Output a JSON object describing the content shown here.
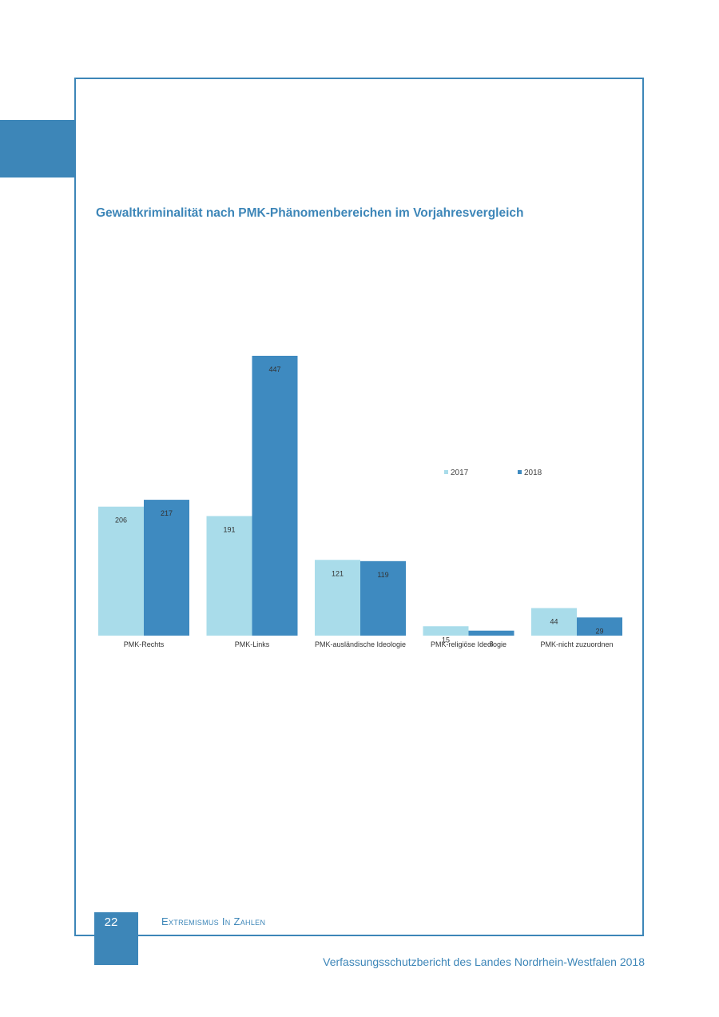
{
  "page": {
    "number": "22",
    "section": "Extremismus In Zahlen",
    "footer": "Verfassungsschutzbericht des Landes Nordrhein-Westfalen 2018"
  },
  "colors": {
    "accent": "#3d86b8",
    "series_2017": "#a9dcea",
    "series_2018": "#3e8ac0"
  },
  "chart_data": {
    "type": "bar",
    "title": "Gewaltkriminalität nach PMK-Phänomenbereichen im Vorjahresvergleich",
    "categories": [
      "PMK-Rechts",
      "PMK-Links",
      "PMK-ausländische Ideologie",
      "PMK-religiöse Ideologie",
      "PMK-nicht zuzuordnen"
    ],
    "series": [
      {
        "name": "2017",
        "values": [
          206,
          191,
          121,
          15,
          44
        ],
        "labels": [
          "206",
          "191",
          "121",
          "15",
          "44"
        ]
      },
      {
        "name": "2018",
        "values": [
          217,
          447,
          119,
          8,
          29
        ],
        "labels": [
          "217",
          "447",
          "119",
          "8",
          "29"
        ]
      }
    ],
    "legend": "top-right",
    "grid": false
  }
}
